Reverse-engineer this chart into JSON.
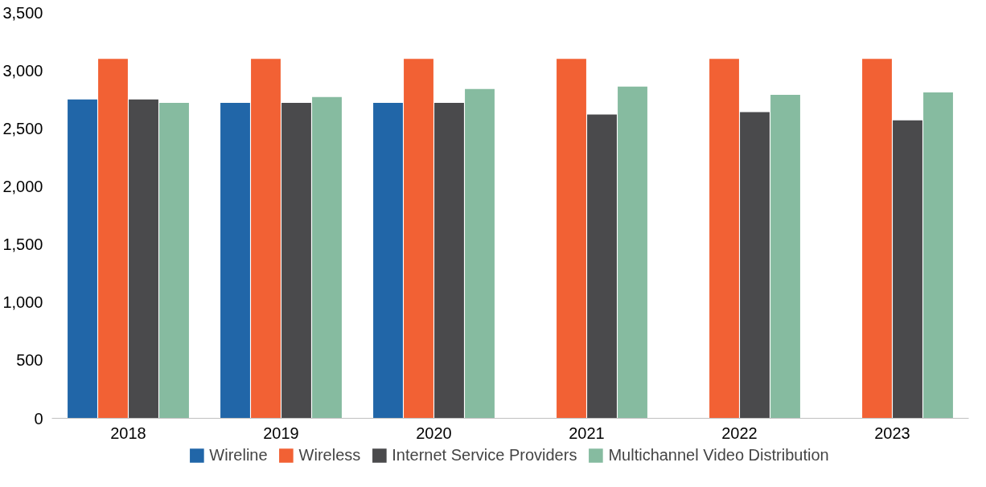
{
  "chart_data": {
    "type": "bar",
    "categories": [
      "2018",
      "2019",
      "2020",
      "2021",
      "2022",
      "2023"
    ],
    "series": [
      {
        "name": "Wireline",
        "color": "#2166a8",
        "values": [
          2750,
          2720,
          2720,
          null,
          null,
          null
        ]
      },
      {
        "name": "Wireless",
        "color": "#f26134",
        "values": [
          3100,
          3100,
          3100,
          3100,
          3100,
          3100
        ]
      },
      {
        "name": "Internet Service Providers",
        "color": "#4a4a4c",
        "values": [
          2750,
          2720,
          2720,
          2620,
          2640,
          2570
        ]
      },
      {
        "name": "Multichannel Video Distribution",
        "color": "#86bba0",
        "values": [
          2720,
          2770,
          2840,
          2860,
          2790,
          2810
        ]
      }
    ],
    "ylim": [
      0,
      3500
    ],
    "yticks": [
      {
        "value": 0,
        "label": "0"
      },
      {
        "value": 500,
        "label": "500"
      },
      {
        "value": 1000,
        "label": "1,000"
      },
      {
        "value": 1500,
        "label": "1,500"
      },
      {
        "value": 2000,
        "label": "2,000"
      },
      {
        "value": 2500,
        "label": "2,500"
      },
      {
        "value": 3000,
        "label": "3,000"
      },
      {
        "value": 3500,
        "label": "3,500"
      }
    ],
    "grid": false,
    "legend": "bottom"
  }
}
